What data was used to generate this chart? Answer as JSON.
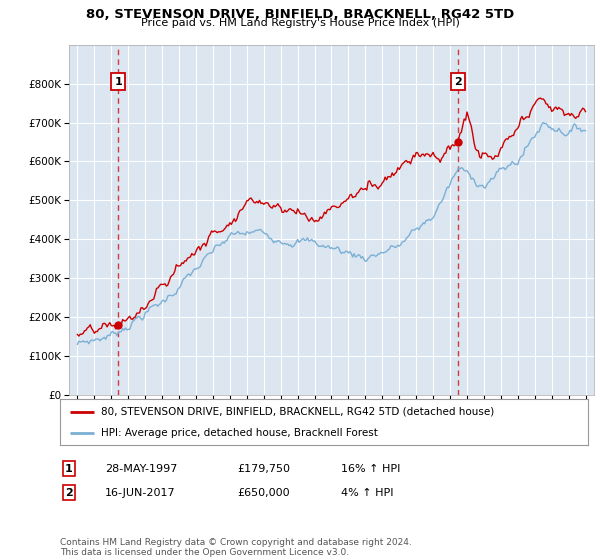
{
  "title": "80, STEVENSON DRIVE, BINFIELD, BRACKNELL, RG42 5TD",
  "subtitle": "Price paid vs. HM Land Registry's House Price Index (HPI)",
  "ylim": [
    0,
    900000
  ],
  "yticks": [
    0,
    100000,
    200000,
    300000,
    400000,
    500000,
    600000,
    700000,
    800000
  ],
  "ytick_labels": [
    "£0",
    "£100K",
    "£200K",
    "£300K",
    "£400K",
    "£500K",
    "£600K",
    "£700K",
    "£800K"
  ],
  "xlim_start": 1994.5,
  "xlim_end": 2025.5,
  "sale1_date": 1997.41,
  "sale1_price": 179750,
  "sale2_date": 2017.46,
  "sale2_price": 650000,
  "legend_line1": "80, STEVENSON DRIVE, BINFIELD, BRACKNELL, RG42 5TD (detached house)",
  "legend_line2": "HPI: Average price, detached house, Bracknell Forest",
  "footer": "Contains HM Land Registry data © Crown copyright and database right 2024.\nThis data is licensed under the Open Government Licence v3.0.",
  "hpi_color": "#7bafd4",
  "price_color": "#cc0000",
  "plot_bg": "#dce6f1",
  "grid_color": "#ffffff",
  "annotation_box_color": "#cc0000"
}
